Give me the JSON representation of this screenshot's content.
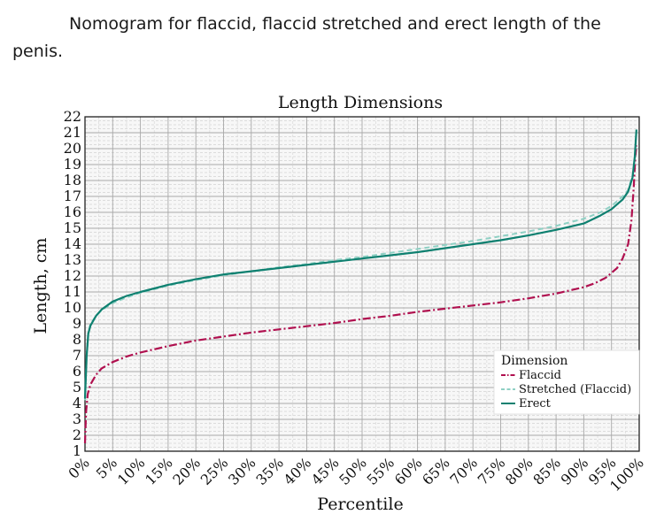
{
  "caption": "Nomogram for flaccid, flaccid stretched and erect length of the penis.",
  "chart_data": {
    "type": "line",
    "title": "Length Dimensions",
    "xlabel": "Percentile",
    "ylabel": "Length, cm",
    "xlim": [
      0,
      100
    ],
    "ylim": [
      1,
      22
    ],
    "x_ticks": [
      "0%",
      "5%",
      "10%",
      "15%",
      "20%",
      "25%",
      "30%",
      "35%",
      "40%",
      "45%",
      "50%",
      "55%",
      "60%",
      "65%",
      "70%",
      "75%",
      "80%",
      "85%",
      "90%",
      "95%",
      "100%"
    ],
    "y_ticks": [
      1,
      2,
      3,
      4,
      5,
      6,
      7,
      8,
      9,
      10,
      11,
      12,
      13,
      14,
      15,
      16,
      17,
      18,
      19,
      20,
      21,
      22
    ],
    "grid": true,
    "legend": {
      "title": "Dimension",
      "position": "bottom-right"
    },
    "series": [
      {
        "name": "Flaccid",
        "color": "#b0104f",
        "style": "dash-dot",
        "points": [
          [
            0,
            1.5
          ],
          [
            0.2,
            3.5
          ],
          [
            0.5,
            4.6
          ],
          [
            1,
            5.2
          ],
          [
            2,
            5.8
          ],
          [
            3,
            6.2
          ],
          [
            5,
            6.6
          ],
          [
            7.5,
            6.95
          ],
          [
            10,
            7.2
          ],
          [
            15,
            7.6
          ],
          [
            20,
            7.95
          ],
          [
            25,
            8.2
          ],
          [
            30,
            8.45
          ],
          [
            35,
            8.65
          ],
          [
            40,
            8.85
          ],
          [
            45,
            9.05
          ],
          [
            50,
            9.3
          ],
          [
            55,
            9.5
          ],
          [
            60,
            9.75
          ],
          [
            65,
            9.95
          ],
          [
            70,
            10.15
          ],
          [
            75,
            10.35
          ],
          [
            80,
            10.6
          ],
          [
            85,
            10.9
          ],
          [
            90,
            11.3
          ],
          [
            92,
            11.55
          ],
          [
            94,
            11.9
          ],
          [
            96,
            12.5
          ],
          [
            97,
            13.1
          ],
          [
            98,
            14.0
          ],
          [
            98.6,
            15.5
          ],
          [
            99,
            17.5
          ],
          [
            99.3,
            19.5
          ],
          [
            99.5,
            20.2
          ]
        ]
      },
      {
        "name": "Stretched (Flaccid)",
        "color": "#8fd0c4",
        "style": "dashed",
        "points": [
          [
            0,
            4.2
          ],
          [
            0.3,
            7.0
          ],
          [
            0.6,
            8.5
          ],
          [
            1,
            9.0
          ],
          [
            2,
            9.5
          ],
          [
            3,
            9.85
          ],
          [
            5,
            10.3
          ],
          [
            7.5,
            10.65
          ],
          [
            10,
            10.95
          ],
          [
            15,
            11.4
          ],
          [
            20,
            11.75
          ],
          [
            25,
            12.05
          ],
          [
            30,
            12.3
          ],
          [
            35,
            12.55
          ],
          [
            40,
            12.75
          ],
          [
            45,
            13.0
          ],
          [
            50,
            13.2
          ],
          [
            55,
            13.45
          ],
          [
            60,
            13.7
          ],
          [
            65,
            13.95
          ],
          [
            70,
            14.2
          ],
          [
            75,
            14.5
          ],
          [
            80,
            14.8
          ],
          [
            85,
            15.15
          ],
          [
            90,
            15.6
          ],
          [
            93,
            16.0
          ],
          [
            95,
            16.4
          ],
          [
            97,
            17.0
          ],
          [
            98,
            17.4
          ],
          [
            98.8,
            18.3
          ],
          [
            99.3,
            19.6
          ]
        ]
      },
      {
        "name": "Erect",
        "color": "#0e8070",
        "style": "solid",
        "points": [
          [
            0,
            4.3
          ],
          [
            0.3,
            7.0
          ],
          [
            0.6,
            8.4
          ],
          [
            1,
            8.9
          ],
          [
            2,
            9.5
          ],
          [
            3,
            9.9
          ],
          [
            5,
            10.4
          ],
          [
            7.5,
            10.75
          ],
          [
            10,
            11.0
          ],
          [
            15,
            11.45
          ],
          [
            20,
            11.8
          ],
          [
            25,
            12.1
          ],
          [
            30,
            12.3
          ],
          [
            35,
            12.5
          ],
          [
            40,
            12.7
          ],
          [
            45,
            12.9
          ],
          [
            50,
            13.1
          ],
          [
            55,
            13.3
          ],
          [
            60,
            13.5
          ],
          [
            65,
            13.75
          ],
          [
            70,
            14.0
          ],
          [
            75,
            14.25
          ],
          [
            80,
            14.55
          ],
          [
            85,
            14.9
          ],
          [
            90,
            15.3
          ],
          [
            93,
            15.8
          ],
          [
            95,
            16.2
          ],
          [
            97,
            16.8
          ],
          [
            98,
            17.3
          ],
          [
            98.8,
            18.2
          ],
          [
            99.2,
            19.5
          ],
          [
            99.5,
            21.2
          ]
        ]
      }
    ]
  }
}
